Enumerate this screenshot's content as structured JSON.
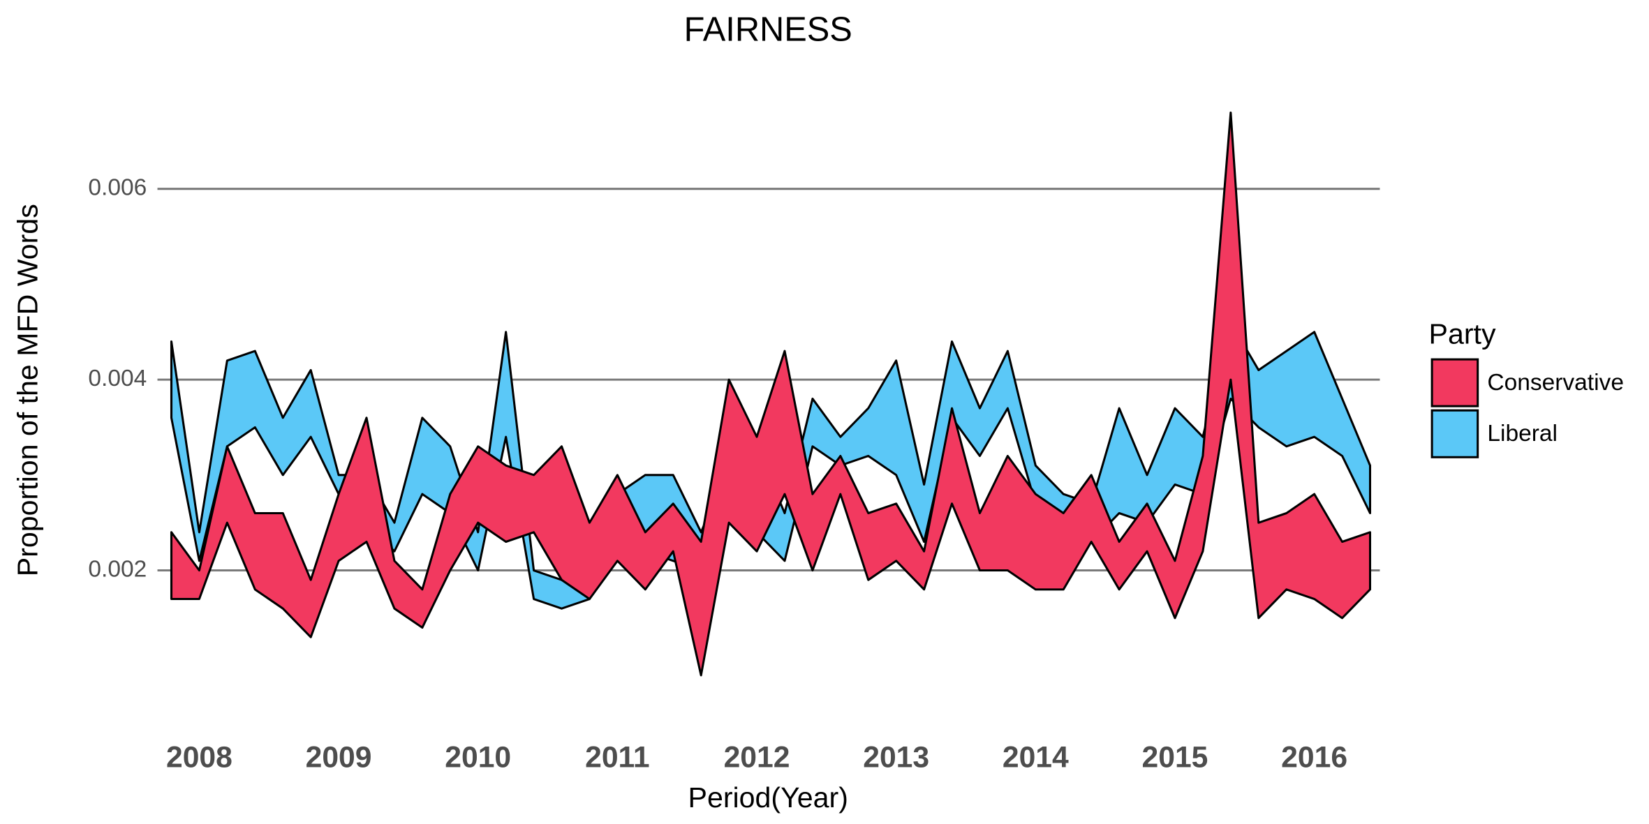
{
  "chart_data": {
    "type": "ribbon",
    "title": "FAIRNESS",
    "x_label": "Period(Year)",
    "y_label": "Proportion of the MFD Words",
    "legend_title": "Party",
    "legend_position": "right",
    "grid": true,
    "x": [
      2007.8,
      2008,
      2008.2,
      2008.4,
      2008.6,
      2008.8,
      2009,
      2009.2,
      2009.4,
      2009.6,
      2009.8,
      2010,
      2010.2,
      2010.4,
      2010.6,
      2010.8,
      2011,
      2011.2,
      2011.4,
      2011.6,
      2011.8,
      2012,
      2012.2,
      2012.4,
      2012.6,
      2012.8,
      2013,
      2013.2,
      2013.4,
      2013.6,
      2013.8,
      2014,
      2014.2,
      2014.4,
      2014.6,
      2014.8,
      2015,
      2015.2,
      2015.4,
      2015.6,
      2015.8,
      2016,
      2016.2,
      2016.4
    ],
    "xlim": [
      2007.7,
      2016.47
    ],
    "xticks": [
      2008,
      2009,
      2010,
      2011,
      2012,
      2013,
      2014,
      2015,
      2016
    ],
    "ylim": [
      0.0004,
      0.0072
    ],
    "yticks": [
      0.002,
      0.004,
      0.006
    ],
    "series": [
      {
        "name": "Conservative",
        "color": "#f2395f",
        "lower": [
          0.0017,
          0.0017,
          0.0025,
          0.0018,
          0.0016,
          0.0013,
          0.0021,
          0.0023,
          0.0016,
          0.0014,
          0.002,
          0.0025,
          0.0023,
          0.0024,
          0.0019,
          0.0017,
          0.0021,
          0.0018,
          0.0022,
          0.0009,
          0.0025,
          0.0022,
          0.0028,
          0.002,
          0.0028,
          0.0019,
          0.0021,
          0.0018,
          0.0027,
          0.002,
          0.002,
          0.0018,
          0.0018,
          0.0023,
          0.0018,
          0.0022,
          0.0015,
          0.0022,
          0.004,
          0.0015,
          0.0018,
          0.0017,
          0.0015,
          0.0018
        ],
        "upper": [
          0.0024,
          0.002,
          0.0033,
          0.0026,
          0.0026,
          0.0019,
          0.0028,
          0.0036,
          0.0021,
          0.0018,
          0.0028,
          0.0033,
          0.0031,
          0.003,
          0.0033,
          0.0025,
          0.003,
          0.0024,
          0.0027,
          0.0023,
          0.004,
          0.0034,
          0.0043,
          0.0028,
          0.0032,
          0.0026,
          0.0027,
          0.0022,
          0.0037,
          0.0026,
          0.0032,
          0.0028,
          0.0026,
          0.003,
          0.0023,
          0.0027,
          0.0021,
          0.0032,
          0.0068,
          0.0025,
          0.0026,
          0.0028,
          0.0023,
          0.0024
        ]
      },
      {
        "name": "Liberal",
        "color": "#5bc8f7",
        "lower": [
          0.0036,
          0.0021,
          0.0033,
          0.0035,
          0.003,
          0.0034,
          0.0028,
          0.0025,
          0.0022,
          0.0028,
          0.0026,
          0.002,
          0.0034,
          0.0017,
          0.0016,
          0.0017,
          0.0022,
          0.0022,
          0.0021,
          0.002,
          0.0026,
          0.0024,
          0.0021,
          0.0033,
          0.0031,
          0.0032,
          0.003,
          0.0023,
          0.0036,
          0.0032,
          0.0037,
          0.0027,
          0.0024,
          0.0023,
          0.0026,
          0.0025,
          0.0029,
          0.0028,
          0.0038,
          0.0035,
          0.0033,
          0.0034,
          0.0032,
          0.0026
        ],
        "upper": [
          0.0044,
          0.0024,
          0.0042,
          0.0043,
          0.0036,
          0.0041,
          0.003,
          0.003,
          0.0025,
          0.0036,
          0.0033,
          0.0024,
          0.0045,
          0.002,
          0.0019,
          0.0022,
          0.0028,
          0.003,
          0.003,
          0.0024,
          0.0031,
          0.0033,
          0.0026,
          0.0038,
          0.0034,
          0.0037,
          0.0042,
          0.0029,
          0.0044,
          0.0037,
          0.0043,
          0.0031,
          0.0028,
          0.0027,
          0.0037,
          0.003,
          0.0037,
          0.0034,
          0.0046,
          0.0041,
          0.0043,
          0.0045,
          0.0038,
          0.0031
        ]
      }
    ]
  }
}
